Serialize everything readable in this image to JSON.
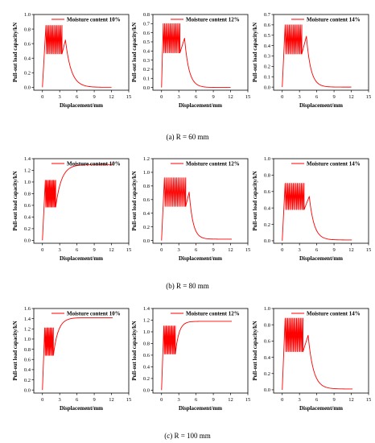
{
  "figure": {
    "captions": [
      "(a) R = 60 mm",
      "(b) R = 80 mm",
      "(c) R = 100 mm"
    ]
  },
  "style": {
    "line_color": "#ff0000",
    "axis_color": "#000000"
  },
  "chart_data": [
    {
      "type": "line",
      "row": "(a) R = 60 mm",
      "xlabel": "Displacement/mm",
      "ylabel": "Pull-out load capacity/kN",
      "xlim": [
        -1.5,
        15
      ],
      "ylim": [
        -0.04,
        1.0
      ],
      "xticks": [
        "0",
        "3",
        "6",
        "9",
        "12",
        "15"
      ],
      "yticks": [
        "0.0",
        "0.2",
        "0.4",
        "0.6",
        "0.8",
        "1.0"
      ],
      "ytick_values": [
        0,
        0.2,
        0.4,
        0.6,
        0.8,
        1.0
      ],
      "legend_position": "top-center",
      "grid": false,
      "series": [
        {
          "name": "Moisture content 10%",
          "rise": {
            "x0": 0,
            "x1": 0.6
          },
          "osc": {
            "x0": 0.6,
            "x1": 3.4,
            "high": 0.85,
            "low": 0.46,
            "n": 12
          },
          "peak": {
            "x": 4.0,
            "y": 0.65
          },
          "decay": {
            "x_end": 12,
            "y_end": 0.0,
            "k": 1.0
          }
        }
      ]
    },
    {
      "type": "line",
      "row": "(a) R = 60 mm",
      "xlabel": "Displacement/mm",
      "ylabel": "Pull-out load capacity/kN",
      "xlim": [
        -1.5,
        15
      ],
      "ylim": [
        -0.03,
        0.8
      ],
      "xticks": [
        "0",
        "3",
        "6",
        "9",
        "12",
        "15"
      ],
      "yticks": [
        "0.0",
        "0.1",
        "0.2",
        "0.3",
        "0.4",
        "0.5",
        "0.6",
        "0.7",
        "0.8"
      ],
      "ytick_values": [
        0,
        0.1,
        0.2,
        0.3,
        0.4,
        0.5,
        0.6,
        0.7,
        0.8
      ],
      "legend_position": "top-center",
      "grid": false,
      "series": [
        {
          "name": "Moisture content 12%",
          "rise": {
            "x0": 0,
            "x1": 0.3
          },
          "osc": {
            "x0": 0.3,
            "x1": 3.2,
            "high": 0.7,
            "low": 0.38,
            "n": 12
          },
          "peak": {
            "x": 4.0,
            "y": 0.54
          },
          "decay": {
            "x_end": 12,
            "y_end": 0.0,
            "k": 1.3
          }
        }
      ]
    },
    {
      "type": "line",
      "row": "(a) R = 60 mm",
      "xlabel": "Displacement/mm",
      "ylabel": "Pull-out load capacity/kN",
      "xlim": [
        -1.5,
        15
      ],
      "ylim": [
        -0.03,
        0.7
      ],
      "xticks": [
        "0",
        "3",
        "6",
        "9",
        "12",
        "15"
      ],
      "yticks": [
        "0.0",
        "0.1",
        "0.2",
        "0.3",
        "0.4",
        "0.5",
        "0.6",
        "0.7"
      ],
      "ytick_values": [
        0,
        0.1,
        0.2,
        0.3,
        0.4,
        0.5,
        0.6,
        0.7
      ],
      "legend_position": "top-center",
      "grid": false,
      "series": [
        {
          "name": "Moisture content 14%",
          "rise": {
            "x0": 0,
            "x1": 0.5
          },
          "osc": {
            "x0": 0.5,
            "x1": 3.4,
            "high": 0.6,
            "low": 0.32,
            "n": 12
          },
          "peak": {
            "x": 4.2,
            "y": 0.49
          },
          "decay": {
            "x_end": 12,
            "y_end": 0.0,
            "k": 1.3
          }
        }
      ]
    },
    {
      "type": "line",
      "row": "(b) R = 80 mm",
      "xlabel": "Displacement/mm",
      "ylabel": "Pull-out load capacity/kN",
      "xlim": [
        -1.5,
        15
      ],
      "ylim": [
        -0.05,
        1.4
      ],
      "xticks": [
        "0",
        "3",
        "6",
        "9",
        "12",
        "15"
      ],
      "yticks": [
        "0.0",
        "0.2",
        "0.4",
        "0.6",
        "0.8",
        "1.0",
        "1.2",
        "1.4"
      ],
      "ytick_values": [
        0,
        0.2,
        0.4,
        0.6,
        0.8,
        1.0,
        1.2,
        1.4
      ],
      "legend_position": "top-center",
      "grid": false,
      "series": [
        {
          "name": "Moisture content 10%",
          "rise": {
            "x0": 0,
            "x1": 0.5
          },
          "osc": {
            "x0": 0.5,
            "x1": 2.3,
            "high": 1.03,
            "low": 0.57,
            "n": 10
          },
          "growth": {
            "x_end": 12.2,
            "y_end": 1.3,
            "k": 1.0
          }
        }
      ]
    },
    {
      "type": "line",
      "row": "(b) R = 80 mm",
      "xlabel": "Displacement/mm",
      "ylabel": "Pull-out load capacity/kN",
      "xlim": [
        -1.5,
        15
      ],
      "ylim": [
        -0.04,
        1.2
      ],
      "xticks": [
        "0",
        "3",
        "6",
        "9",
        "12",
        "15"
      ],
      "yticks": [
        "0.0",
        "0.2",
        "0.4",
        "0.6",
        "0.8",
        "1.0",
        "1.2"
      ],
      "ytick_values": [
        0,
        0.2,
        0.4,
        0.6,
        0.8,
        1.0,
        1.2
      ],
      "legend_position": "top-center",
      "grid": false,
      "series": [
        {
          "name": "Moisture content 12%",
          "rise": {
            "x0": 0,
            "x1": 0.5
          },
          "osc": {
            "x0": 0.5,
            "x1": 4.2,
            "high": 0.92,
            "low": 0.5,
            "n": 14
          },
          "peak": {
            "x": 4.8,
            "y": 0.71
          },
          "decay": {
            "x_end": 12.2,
            "y_end": 0.02,
            "k": 1.5
          }
        }
      ]
    },
    {
      "type": "line",
      "row": "(b) R = 80 mm",
      "xlabel": "Displacement/mm",
      "ylabel": "Pull-out load capacity/kN",
      "xlim": [
        -1.5,
        15
      ],
      "ylim": [
        -0.03,
        1.0
      ],
      "xticks": [
        "0",
        "3",
        "6",
        "9",
        "12",
        "15"
      ],
      "yticks": [
        "0.0",
        "0.2",
        "0.4",
        "0.6",
        "0.8",
        "1.0"
      ],
      "ytick_values": [
        0,
        0.2,
        0.4,
        0.6,
        0.8,
        1.0
      ],
      "legend_position": "top-center",
      "grid": false,
      "series": [
        {
          "name": "Moisture content 14%",
          "rise": {
            "x0": 0,
            "x1": 0.5
          },
          "osc": {
            "x0": 0.5,
            "x1": 3.8,
            "high": 0.7,
            "low": 0.38,
            "n": 14
          },
          "peak": {
            "x": 4.7,
            "y": 0.54
          },
          "decay": {
            "x_end": 12.1,
            "y_end": 0.01,
            "k": 1.2
          }
        }
      ]
    },
    {
      "type": "line",
      "row": "(c) R = 100 mm",
      "xlabel": "Displacement/mm",
      "ylabel": "Pull-out load capacity/kN",
      "xlim": [
        -1.5,
        15
      ],
      "ylim": [
        -0.06,
        1.6
      ],
      "xticks": [
        "0",
        "3",
        "6",
        "9",
        "12",
        "15"
      ],
      "yticks": [
        "0.0",
        "0.2",
        "0.4",
        "0.6",
        "0.8",
        "1.0",
        "1.2",
        "1.4",
        "1.6"
      ],
      "ytick_values": [
        0,
        0.2,
        0.4,
        0.6,
        0.8,
        1.0,
        1.2,
        1.4,
        1.6
      ],
      "legend_position": "top-center",
      "grid": false,
      "series": [
        {
          "name": "Moisture content 10%",
          "rise": {
            "x0": 0,
            "x1": 0.4
          },
          "osc": {
            "x0": 0.4,
            "x1": 1.9,
            "high": 1.22,
            "low": 0.68,
            "n": 8
          },
          "growth": {
            "x_end": 12.2,
            "y_end": 1.42,
            "k": 1.2
          }
        }
      ]
    },
    {
      "type": "line",
      "row": "(c) R = 100 mm",
      "xlabel": "Displacement/mm",
      "ylabel": "Pull-out load capacity/kN",
      "xlim": [
        -1.5,
        15
      ],
      "ylim": [
        -0.05,
        1.4
      ],
      "xticks": [
        "0",
        "3",
        "6",
        "9",
        "12",
        "15"
      ],
      "yticks": [
        "0.0",
        "0.2",
        "0.4",
        "0.6",
        "0.8",
        "1.0",
        "1.2",
        "1.4"
      ],
      "ytick_values": [
        0,
        0.2,
        0.4,
        0.6,
        0.8,
        1.0,
        1.2,
        1.4
      ],
      "legend_position": "top-center",
      "grid": false,
      "series": [
        {
          "name": "Moisture content 12%",
          "rise": {
            "x0": 0,
            "x1": 0.4
          },
          "osc": {
            "x0": 0.4,
            "x1": 2.4,
            "high": 1.1,
            "low": 0.62,
            "n": 10
          },
          "growth": {
            "x_end": 12.2,
            "y_end": 1.18,
            "k": 1.6
          }
        }
      ]
    },
    {
      "type": "line",
      "row": "(c) R = 100 mm",
      "xlabel": "Displacement/mm",
      "ylabel": "Pull-out load capacity/kN",
      "xlim": [
        -1.5,
        15
      ],
      "ylim": [
        -0.04,
        1.0
      ],
      "xticks": [
        "0",
        "3",
        "6",
        "9",
        "12",
        "15"
      ],
      "yticks": [
        "0.0",
        "0.2",
        "0.4",
        "0.6",
        "0.8",
        "1.0"
      ],
      "ytick_values": [
        0,
        0.2,
        0.4,
        0.6,
        0.8,
        1.0
      ],
      "legend_position": "top-center",
      "grid": false,
      "series": [
        {
          "name": "Moisture content 14%",
          "rise": {
            "x0": 0,
            "x1": 0.5
          },
          "osc": {
            "x0": 0.5,
            "x1": 3.6,
            "high": 0.88,
            "low": 0.47,
            "n": 14
          },
          "peak": {
            "x": 4.5,
            "y": 0.67
          },
          "decay": {
            "x_end": 12.2,
            "y_end": 0.01,
            "k": 1.1
          }
        }
      ]
    }
  ]
}
